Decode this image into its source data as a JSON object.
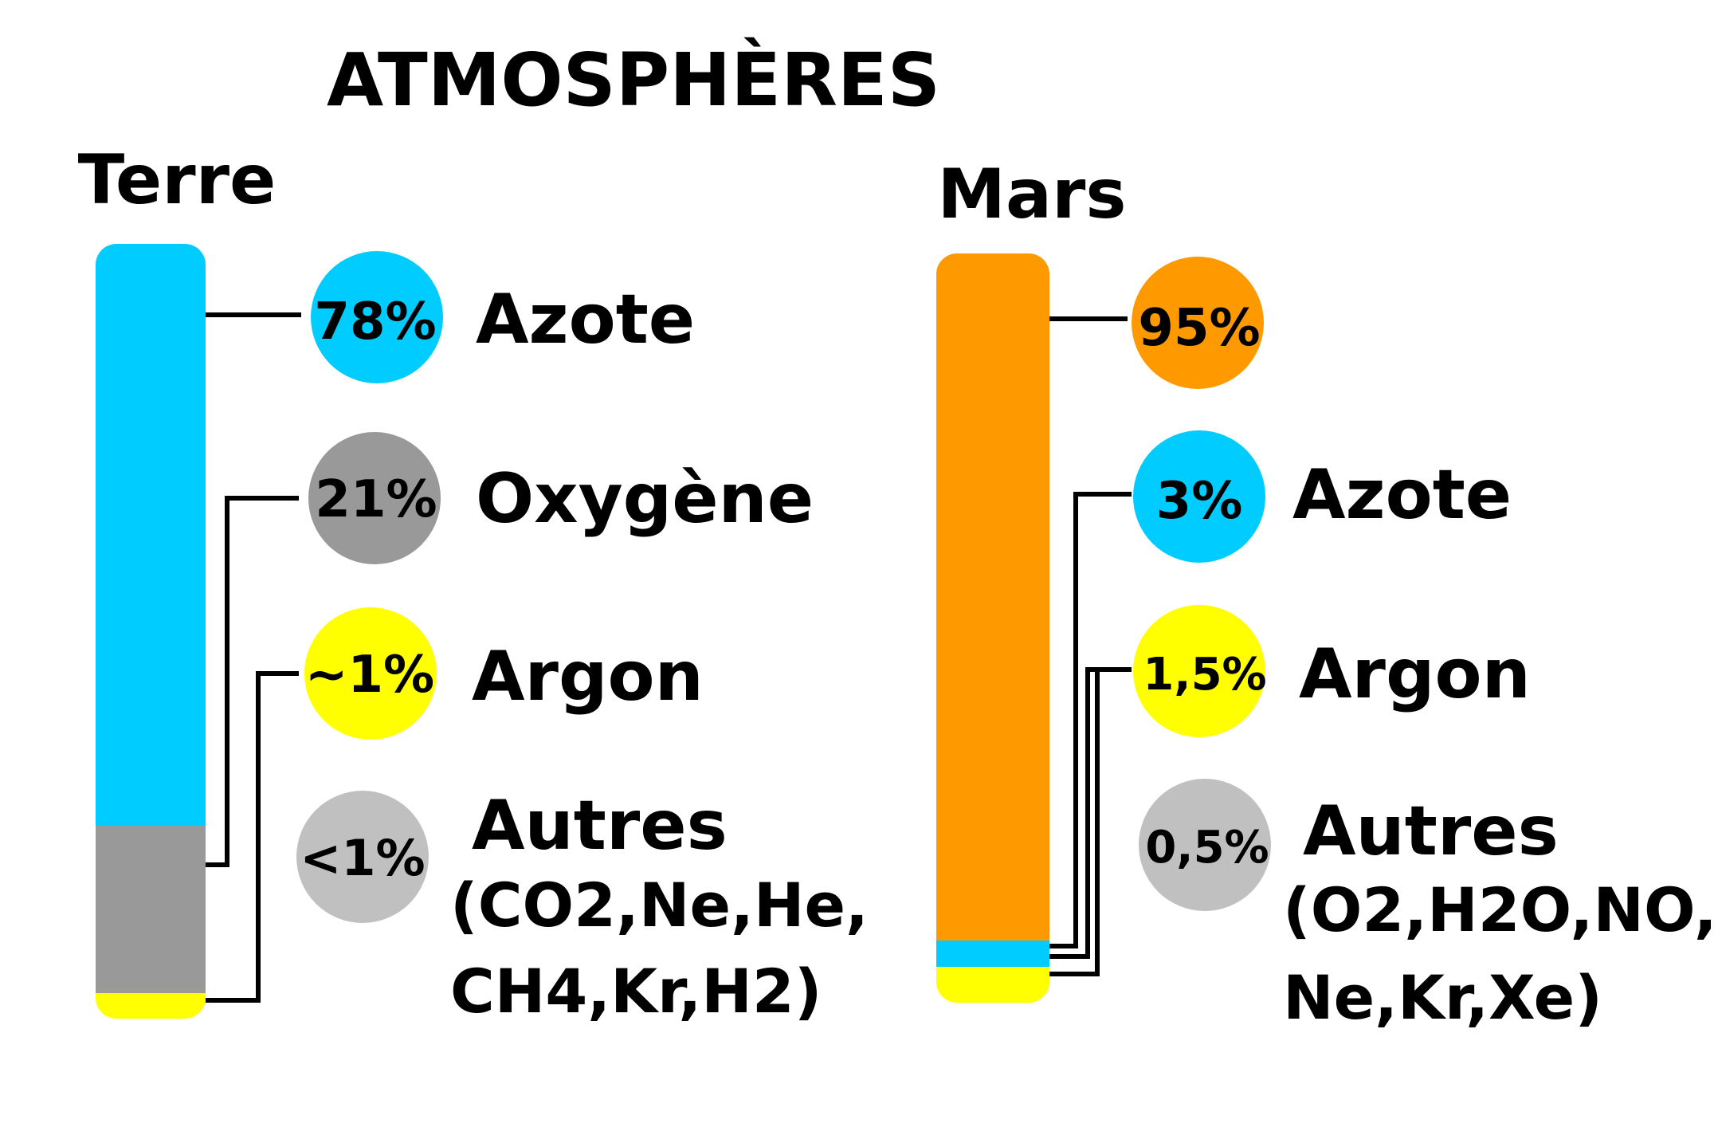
{
  "title": "ATMOSPHÈRES",
  "colors": {
    "nitrogen": "#00ccff",
    "oxygen": "#999999",
    "argon": "#ffff00",
    "others": "#c0c0c0",
    "co2": "#ff9900"
  },
  "earth": {
    "label": "Terre",
    "components": [
      {
        "percent": "78%",
        "name": "Azote",
        "color_key": "nitrogen"
      },
      {
        "percent": "21%",
        "name": "Oxygène",
        "color_key": "oxygen"
      },
      {
        "percent": "~1%",
        "name": "Argon",
        "color_key": "argon"
      },
      {
        "percent": "<1%",
        "name": "Autres",
        "detail_line1": "(CO2,Ne,He,",
        "detail_line2": "CH4,Kr,H2)",
        "color_key": "others"
      }
    ]
  },
  "mars": {
    "label": "Mars",
    "components": [
      {
        "percent": "95%",
        "name": "",
        "color_key": "co2"
      },
      {
        "percent": "3%",
        "name": "Azote",
        "color_key": "nitrogen"
      },
      {
        "percent": "1,5%",
        "name": "Argon",
        "color_key": "argon"
      },
      {
        "percent": "0,5%",
        "name": "Autres",
        "detail_line1": "(O2,H2O,NO,",
        "detail_line2": "Ne,Kr,Xe)",
        "color_key": "others"
      }
    ]
  }
}
